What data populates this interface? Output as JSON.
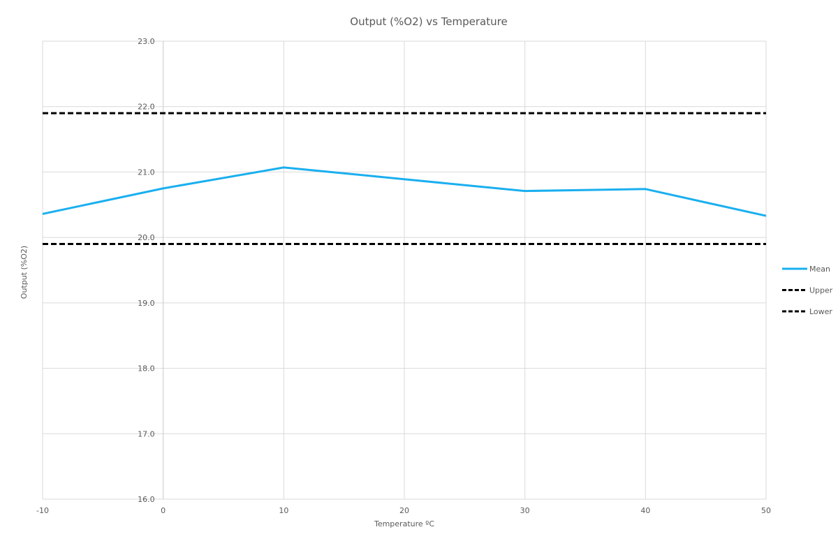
{
  "chart_data": {
    "type": "line",
    "title": "Output (%O2) vs Temperature",
    "xlabel": "Temperature ºC",
    "ylabel": "Output (%O2)",
    "x": [
      -10,
      0,
      10,
      20,
      30,
      40,
      50
    ],
    "xlim": [
      -10,
      50
    ],
    "ylim": [
      16.0,
      23.0
    ],
    "xticks": [
      "-10",
      "0",
      "10",
      "20",
      "30",
      "40",
      "50"
    ],
    "yticks": [
      "16.0",
      "17.0",
      "18.0",
      "19.0",
      "20.0",
      "21.0",
      "22.0",
      "23.0"
    ],
    "grid": true,
    "legend_position": "right",
    "series": [
      {
        "name": "Mean",
        "values": [
          20.36,
          20.75,
          21.07,
          20.89,
          20.71,
          20.74,
          20.33
        ],
        "color": "#1AAFEF",
        "style": "solid"
      },
      {
        "name": "Upper",
        "values": [
          21.9,
          21.9,
          21.9,
          21.9,
          21.9,
          21.9,
          21.9
        ],
        "color": "#000000",
        "style": "dashed"
      },
      {
        "name": "Lower",
        "values": [
          19.9,
          19.9,
          19.9,
          19.9,
          19.9,
          19.9,
          19.9
        ],
        "color": "#000000",
        "style": "dashed"
      }
    ]
  }
}
